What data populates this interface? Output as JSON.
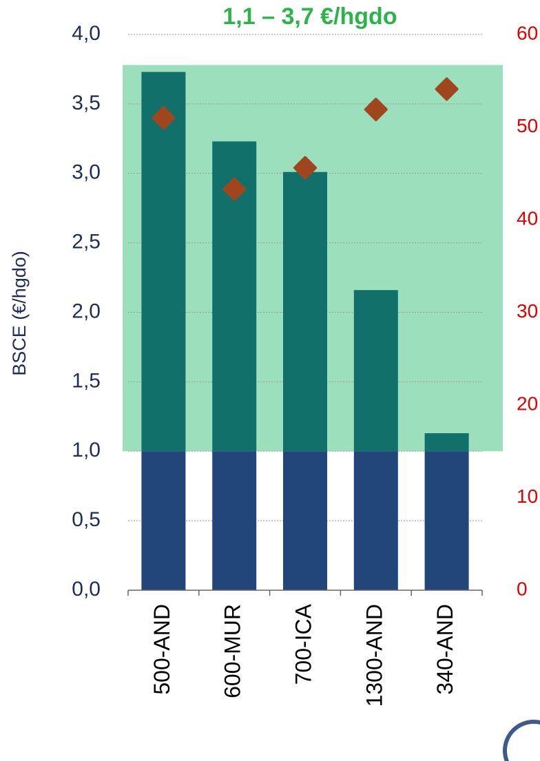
{
  "chart_data": {
    "type": "bar",
    "stacked": true,
    "title": "1,1 – 3,7 €/hgdo",
    "y_label": "BSCE (€/hgdo)",
    "categories": [
      "500-AND",
      "600-MUR",
      "700-ICA",
      "1300-AND",
      "340-AND"
    ],
    "series": [
      {
        "color": "#22467a",
        "values": [
          1.0,
          1.0,
          1.0,
          1.0,
          1.0
        ]
      },
      {
        "color": "#12706a",
        "values": [
          2.73,
          2.23,
          2.01,
          1.16,
          0.13
        ]
      },
      {
        "color": "#a0461e",
        "type": "scatter",
        "axis": "y2",
        "values": [
          51.0,
          43.3,
          45.6,
          51.9,
          54.1
        ]
      }
    ],
    "shaded_range": [
      1.0,
      3.78
    ],
    "shaded_color": "#9cdfbc",
    "ylim": [
      0,
      4
    ],
    "yticks": [
      {
        "value": 0,
        "label": "0,0"
      },
      {
        "value": 0.5,
        "label": "0,5"
      },
      {
        "value": 1,
        "label": "1,0"
      },
      {
        "value": 1.5,
        "label": "1,5"
      },
      {
        "value": 2,
        "label": "2,0"
      },
      {
        "value": 2.5,
        "label": "2,5"
      },
      {
        "value": 3,
        "label": "3,0"
      },
      {
        "value": 3.5,
        "label": "3,5"
      },
      {
        "value": 4,
        "label": "4,0"
      }
    ],
    "y2lim": [
      0,
      60
    ],
    "y2ticks": [
      0,
      10,
      20,
      30,
      40,
      50,
      60
    ],
    "grid": true
  }
}
